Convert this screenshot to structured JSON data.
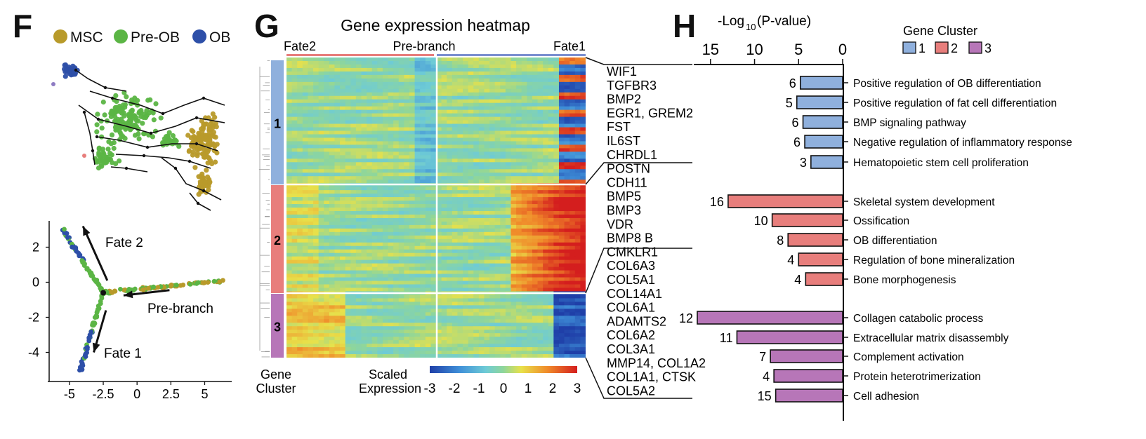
{
  "panel_labels": {
    "f": "F",
    "g": "G",
    "h": "H"
  },
  "colors": {
    "msc": "#b89a2a",
    "pre_ob": "#5bb545",
    "ob": "#2d4fa8",
    "cluster1": "#8fb0dd",
    "cluster2": "#e87e7c",
    "cluster3": "#b776b8"
  },
  "legend_F": [
    {
      "label": "MSC",
      "color": "#b89a2a"
    },
    {
      "label": "Pre-OB",
      "color": "#5bb545"
    },
    {
      "label": "OB",
      "color": "#2d4fa8"
    }
  ],
  "chart_data": [
    {
      "id": "F-top",
      "type": "scatter",
      "description_kind": "embedding-with-velocity-arrows",
      "groups": [
        "MSC",
        "Pre-OB",
        "OB"
      ]
    },
    {
      "id": "F-bottom",
      "type": "scatter",
      "xlim": [
        -6.5,
        7
      ],
      "ylim": [
        -5.5,
        3.5
      ],
      "x_ticks": [
        "-5",
        "-2.5",
        "0",
        "2.5",
        "5"
      ],
      "x_tick_values": [
        -5,
        -2.5,
        0,
        2.5,
        5
      ],
      "y_ticks": [
        "2",
        "0",
        "-2",
        "-4"
      ],
      "y_tick_values": [
        2,
        0,
        -2,
        -4
      ],
      "annotations": [
        "Fate 2",
        "Pre-branch",
        "Fate 1"
      ]
    },
    {
      "id": "G",
      "type": "heatmap",
      "title": "Gene expression heatmap",
      "top_labels": [
        "Fate2",
        "Pre-branch",
        "Fate1"
      ],
      "clusters": [
        "1",
        "2",
        "3"
      ],
      "left_label": [
        "Gene",
        "Cluster"
      ],
      "colorbar_label": [
        "Scaled",
        "Expression"
      ],
      "colorbar_ticks": [
        "-3",
        "-2",
        "-1",
        "0",
        "1",
        "2",
        "3"
      ],
      "colorbar_values": [
        -3,
        -2,
        -1,
        0,
        1,
        2,
        3
      ],
      "gene_labels": [
        "WIF1",
        "TGFBR3",
        "BMP2",
        "EGR1, GREM2",
        "FST",
        "IL6ST",
        "CHRDL1",
        "POSTN",
        "CDH11",
        "BMP5",
        "BMP3",
        "VDR",
        "BMP8 B",
        "CMKLR1",
        "COL6A3",
        "COL5A1",
        "COL14A1",
        "COL6A1",
        "ADAMTS2",
        "COL6A2",
        "COL3A1",
        "MMP14, COL1A2",
        "COL1A1, CTSK",
        "COL5A2"
      ]
    },
    {
      "id": "H",
      "type": "bar",
      "orientation": "horizontal",
      "xlabel": "-Log10 (P-value)",
      "x_ticks": [
        "15",
        "10",
        "5",
        "0"
      ],
      "x_tick_values": [
        15,
        10,
        5,
        0
      ],
      "xlim": [
        0,
        16.5
      ],
      "legend_title": "Gene  Cluster",
      "legend": [
        "1",
        "2",
        "3"
      ],
      "categories": [
        "Positive regulation of OB differentiation",
        "Positive regulation of fat cell differentiation",
        "BMP signaling pathway",
        "Negative regulation of inflammatory response",
        "Hematopoietic stem cell proliferation",
        "Skeletal system development",
        "Ossification",
        "OB differentiation",
        "Regulation of bone mineralization",
        "Bone morphogenesis",
        "Collagen catabolic process",
        "Extracellular matrix disassembly",
        "Complement activation",
        "Protein heterotrimerization",
        "Cell adhesion"
      ],
      "values": [
        4.8,
        5.2,
        4.5,
        4.3,
        3.6,
        13.0,
        8.0,
        6.2,
        5.0,
        4.2,
        16.5,
        12.0,
        8.2,
        7.8,
        7.6
      ],
      "counts": [
        "6",
        "5",
        "6",
        "6",
        "3",
        "16",
        "10",
        "8",
        "4",
        "4",
        "12",
        "11",
        "7",
        "4",
        "15"
      ],
      "cluster": [
        1,
        1,
        1,
        1,
        1,
        2,
        2,
        2,
        2,
        2,
        3,
        3,
        3,
        3,
        3
      ]
    }
  ]
}
